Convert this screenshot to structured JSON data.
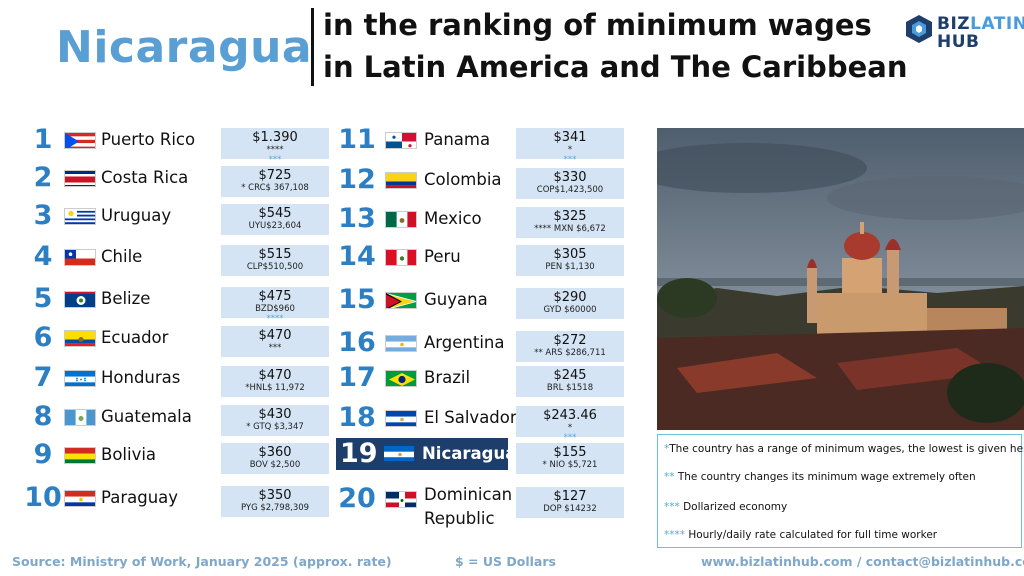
{
  "header": {
    "country": "Nicaragua",
    "title_line1": "in the ranking of minimum wages",
    "title_line2": "in Latin America and The Caribbean"
  },
  "logo": {
    "line1_a": "BIZ",
    "line1_b": "LATIN",
    "line2": "HUB"
  },
  "ranking": [
    {
      "rank": "1",
      "country": "Puerto Rico",
      "flag": "puerto-rico",
      "wage": "$1.390",
      "sub1": "****",
      "sub2": "***"
    },
    {
      "rank": "2",
      "country": "Costa Rica",
      "flag": "costa-rica",
      "wage": "$725",
      "sub1": "* CRC$ 367,108",
      "sub2": ""
    },
    {
      "rank": "3",
      "country": "Uruguay",
      "flag": "uruguay",
      "wage": "$545",
      "sub1": "UYU$23,604",
      "sub2": ""
    },
    {
      "rank": "4",
      "country": "Chile",
      "flag": "chile",
      "wage": "$515",
      "sub1": "CLP$510,500",
      "sub2": ""
    },
    {
      "rank": "5",
      "country": "Belize",
      "flag": "belize",
      "wage": "$475",
      "sub1": "BZD$960",
      "sub2": "****"
    },
    {
      "rank": "6",
      "country": "Ecuador",
      "flag": "ecuador",
      "wage": "$470",
      "sub1": "***",
      "sub2": ""
    },
    {
      "rank": "7",
      "country": "Honduras",
      "flag": "honduras",
      "wage": "$470",
      "sub1": "*HNL$ 11,972",
      "sub2": ""
    },
    {
      "rank": "8",
      "country": "Guatemala",
      "flag": "guatemala",
      "wage": "$430",
      "sub1": "* GTQ $3,347",
      "sub2": ""
    },
    {
      "rank": "9",
      "country": "Bolivia",
      "flag": "bolivia",
      "wage": "$360",
      "sub1": "BOV $2,500",
      "sub2": ""
    },
    {
      "rank": "10",
      "country": "Paraguay",
      "flag": "paraguay",
      "wage": "$350",
      "sub1": "PYG $2,798,309",
      "sub2": ""
    },
    {
      "rank": "11",
      "country": "Panama",
      "flag": "panama",
      "wage": "$341",
      "sub1": "*",
      "sub2": "***"
    },
    {
      "rank": "12",
      "country": "Colombia",
      "flag": "colombia",
      "wage": "$330",
      "sub1": "COP$1,423,500",
      "sub2": ""
    },
    {
      "rank": "13",
      "country": "Mexico",
      "flag": "mexico",
      "wage": "$325",
      "sub1": "**** MXN $6,672",
      "sub2": ""
    },
    {
      "rank": "14",
      "country": "Peru",
      "flag": "peru",
      "wage": "$305",
      "sub1": "PEN $1,130",
      "sub2": ""
    },
    {
      "rank": "15",
      "country": "Guyana",
      "flag": "guyana",
      "wage": "$290",
      "sub1": "GYD $60000",
      "sub2": ""
    },
    {
      "rank": "16",
      "country": "Argentina",
      "flag": "argentina",
      "wage": "$272",
      "sub1": "** ARS $286,711",
      "sub2": ""
    },
    {
      "rank": "17",
      "country": "Brazil",
      "flag": "brazil",
      "wage": "$245",
      "sub1": "BRL $1518",
      "sub2": ""
    },
    {
      "rank": "18",
      "country": "El Salvador",
      "flag": "el-salvador",
      "wage": "$243.46",
      "sub1": "*",
      "sub2": "***"
    },
    {
      "rank": "19",
      "country": "Nicaragua",
      "flag": "nicaragua",
      "wage": "$155",
      "sub1": "* NIO $5,721",
      "sub2": ""
    },
    {
      "rank": "20",
      "country": "Dominican",
      "country2": "Republic",
      "flag": "dominican-republic",
      "wage": "$127",
      "sub1": "DOP $14232",
      "sub2": ""
    }
  ],
  "notes": [
    {
      "marker": "*",
      "text": "The country has a range of minimum wages, the lowest is given here"
    },
    {
      "marker": "**",
      "text": " The country changes its minimum wage extremely often"
    },
    {
      "marker": "***",
      "text": " Dollarized economy"
    },
    {
      "marker": "****",
      "text": " Hourly/daily rate calculated for full time worker"
    }
  ],
  "footer": {
    "source": "Source: Ministry of Work, January 2025 (approx. rate)",
    "currency": "$ = US Dollars",
    "contact": "www.bizlatinhub.com / contact@bizlatinhub.com"
  },
  "colors": {
    "accent": "#5a9fd4",
    "rank": "#2d7fc4",
    "box": "#d4e4f4",
    "highlight": "#1d3e6b"
  }
}
